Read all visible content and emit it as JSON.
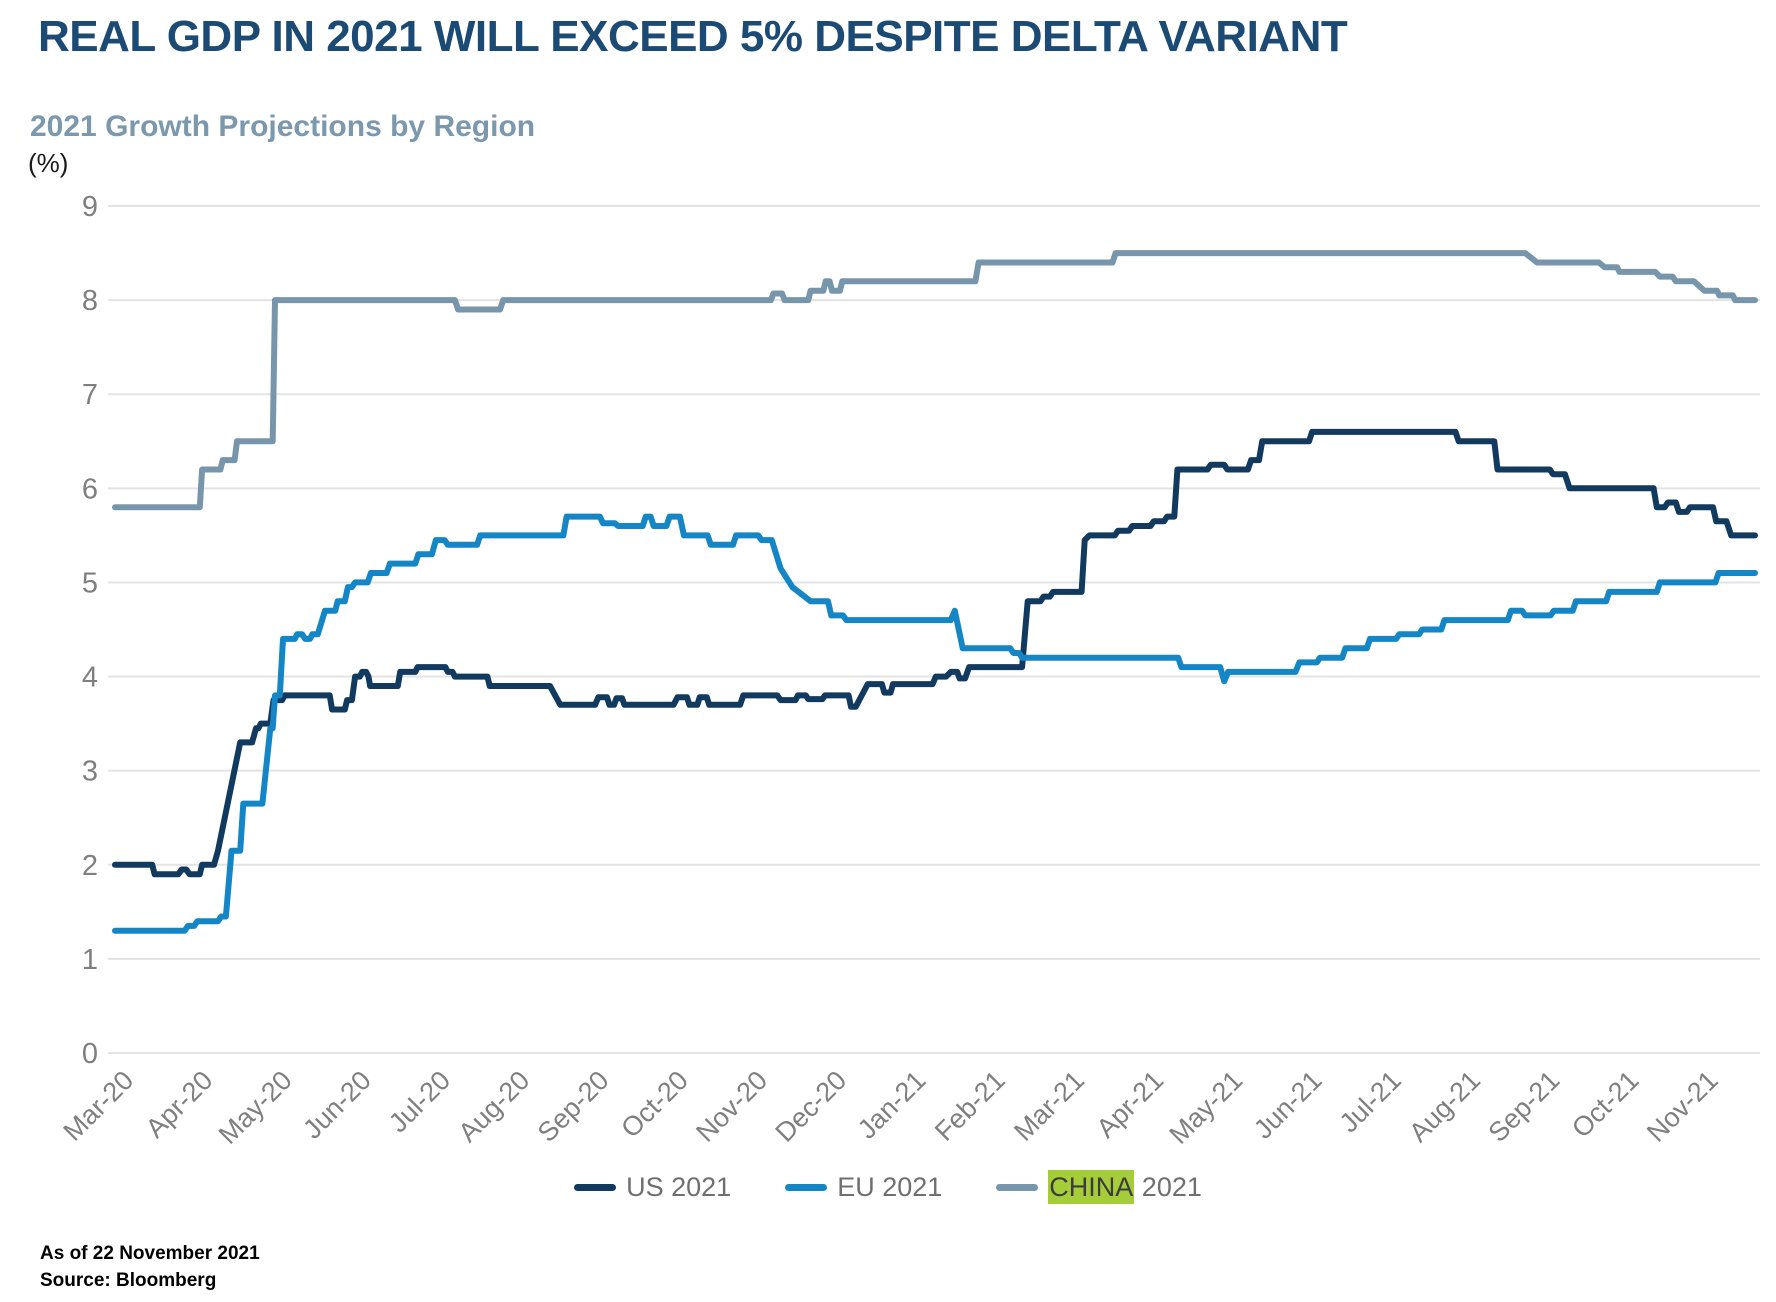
{
  "header": {
    "title": "REAL GDP IN 2021 WILL EXCEED 5% DESPITE DELTA VARIANT",
    "subtitle": "2021 Growth Projections by Region",
    "unit_label": "(%)"
  },
  "footer": {
    "as_of": "As of 22 November 2021",
    "source": "Source: Bloomberg"
  },
  "colors": {
    "title": "#1b4a74",
    "subtitle": "#7b98ad",
    "gridline": "#e3e3e3",
    "axis_text": "#7f7f7f",
    "legend_text": "#6f6f6f",
    "highlight": "#a5cd39",
    "us_line": "#123a5e",
    "eu_line": "#1486c6",
    "china_line": "#7795ab"
  },
  "legend": {
    "items": [
      {
        "label": "US 2021",
        "highlight": ""
      },
      {
        "label": "EU 2021",
        "highlight": ""
      },
      {
        "label": "CHINA 2021",
        "highlight": "CHINA"
      }
    ]
  },
  "chart_data": {
    "type": "line",
    "title": "2021 Growth Projections by Region",
    "xlabel": "",
    "ylabel": "(%)",
    "ylim": [
      0,
      9
    ],
    "yticks": [
      0,
      1,
      2,
      3,
      4,
      5,
      6,
      7,
      8,
      9
    ],
    "grid": "horizontal-only",
    "legend_position": "bottom",
    "x_tick_labels": [
      "Mar-20",
      "Apr-20",
      "May-20",
      "Jun-20",
      "Jul-20",
      "Aug-20",
      "Sep-20",
      "Oct-20",
      "Nov-20",
      "Dec-20",
      "Jan-21",
      "Feb-21",
      "Mar-21",
      "Apr-21",
      "May-21",
      "Jun-21",
      "Jul-21",
      "Aug-21",
      "Sep-21",
      "Oct-21",
      "Nov-21"
    ],
    "x_unit": "months since Mar-2020 tick",
    "x_range": [
      0,
      20.7
    ],
    "series": [
      {
        "name": "US 2021",
        "color_key": "us_line",
        "points": [
          [
            0,
            2.0
          ],
          [
            0.47,
            2.0
          ],
          [
            0.5,
            1.9
          ],
          [
            0.8,
            1.9
          ],
          [
            0.84,
            1.95
          ],
          [
            0.9,
            1.95
          ],
          [
            0.94,
            1.9
          ],
          [
            1.07,
            1.9
          ],
          [
            1.1,
            2.0
          ],
          [
            1.25,
            2.0
          ],
          [
            1.3,
            2.15
          ],
          [
            1.58,
            3.3
          ],
          [
            1.73,
            3.3
          ],
          [
            1.78,
            3.45
          ],
          [
            1.81,
            3.45
          ],
          [
            1.84,
            3.5
          ],
          [
            1.96,
            3.5
          ],
          [
            2.0,
            3.75
          ],
          [
            2.11,
            3.75
          ],
          [
            2.14,
            3.8
          ],
          [
            2.71,
            3.8
          ],
          [
            2.74,
            3.65
          ],
          [
            2.9,
            3.65
          ],
          [
            2.93,
            3.75
          ],
          [
            2.99,
            3.75
          ],
          [
            3.03,
            4.0
          ],
          [
            3.09,
            4.0
          ],
          [
            3.12,
            4.05
          ],
          [
            3.17,
            4.05
          ],
          [
            3.2,
            4.0
          ],
          [
            3.22,
            3.9
          ],
          [
            3.57,
            3.9
          ],
          [
            3.6,
            4.05
          ],
          [
            3.79,
            4.05
          ],
          [
            3.82,
            4.1
          ],
          [
            4.17,
            4.1
          ],
          [
            4.2,
            4.05
          ],
          [
            4.26,
            4.05
          ],
          [
            4.29,
            4.0
          ],
          [
            4.7,
            4.0
          ],
          [
            4.73,
            3.9
          ],
          [
            5.49,
            3.9
          ],
          [
            5.62,
            3.7
          ],
          [
            6.06,
            3.7
          ],
          [
            6.1,
            3.78
          ],
          [
            6.21,
            3.78
          ],
          [
            6.24,
            3.7
          ],
          [
            6.3,
            3.7
          ],
          [
            6.33,
            3.77
          ],
          [
            6.4,
            3.77
          ],
          [
            6.43,
            3.7
          ],
          [
            7.05,
            3.7
          ],
          [
            7.1,
            3.78
          ],
          [
            7.22,
            3.78
          ],
          [
            7.25,
            3.7
          ],
          [
            7.35,
            3.7
          ],
          [
            7.38,
            3.78
          ],
          [
            7.47,
            3.78
          ],
          [
            7.5,
            3.7
          ],
          [
            7.89,
            3.7
          ],
          [
            7.93,
            3.8
          ],
          [
            8.36,
            3.8
          ],
          [
            8.4,
            3.75
          ],
          [
            8.59,
            3.75
          ],
          [
            8.62,
            3.8
          ],
          [
            8.72,
            3.8
          ],
          [
            8.75,
            3.76
          ],
          [
            8.93,
            3.76
          ],
          [
            8.96,
            3.8
          ],
          [
            9.26,
            3.8
          ],
          [
            9.29,
            3.68
          ],
          [
            9.35,
            3.68
          ],
          [
            9.5,
            3.92
          ],
          [
            9.68,
            3.92
          ],
          [
            9.71,
            3.83
          ],
          [
            9.79,
            3.83
          ],
          [
            9.82,
            3.92
          ],
          [
            10.32,
            3.92
          ],
          [
            10.36,
            4.0
          ],
          [
            10.49,
            4.0
          ],
          [
            10.55,
            4.05
          ],
          [
            10.63,
            4.05
          ],
          [
            10.66,
            3.98
          ],
          [
            10.73,
            3.98
          ],
          [
            10.78,
            4.1
          ],
          [
            11.45,
            4.1
          ],
          [
            11.52,
            4.8
          ],
          [
            11.68,
            4.8
          ],
          [
            11.72,
            4.85
          ],
          [
            11.8,
            4.85
          ],
          [
            11.84,
            4.9
          ],
          [
            12.2,
            4.9
          ],
          [
            12.24,
            5.45
          ],
          [
            12.3,
            5.5
          ],
          [
            12.62,
            5.5
          ],
          [
            12.66,
            5.55
          ],
          [
            12.8,
            5.55
          ],
          [
            12.84,
            5.6
          ],
          [
            13.07,
            5.6
          ],
          [
            13.11,
            5.65
          ],
          [
            13.24,
            5.65
          ],
          [
            13.28,
            5.7
          ],
          [
            13.37,
            5.7
          ],
          [
            13.41,
            6.2
          ],
          [
            13.79,
            6.2
          ],
          [
            13.83,
            6.25
          ],
          [
            14.0,
            6.25
          ],
          [
            14.04,
            6.2
          ],
          [
            14.3,
            6.2
          ],
          [
            14.34,
            6.3
          ],
          [
            14.44,
            6.3
          ],
          [
            14.48,
            6.5
          ],
          [
            15.07,
            6.5
          ],
          [
            15.11,
            6.6
          ],
          [
            16.92,
            6.6
          ],
          [
            16.96,
            6.5
          ],
          [
            17.41,
            6.5
          ],
          [
            17.45,
            6.2
          ],
          [
            18.11,
            6.2
          ],
          [
            18.15,
            6.15
          ],
          [
            18.3,
            6.15
          ],
          [
            18.36,
            6.0
          ],
          [
            19.42,
            6.0
          ],
          [
            19.46,
            5.8
          ],
          [
            19.56,
            5.8
          ],
          [
            19.6,
            5.85
          ],
          [
            19.7,
            5.85
          ],
          [
            19.74,
            5.75
          ],
          [
            19.84,
            5.75
          ],
          [
            19.88,
            5.8
          ],
          [
            20.17,
            5.8
          ],
          [
            20.21,
            5.65
          ],
          [
            20.34,
            5.65
          ],
          [
            20.4,
            5.5
          ],
          [
            20.7,
            5.5
          ]
        ]
      },
      {
        "name": "EU 2021",
        "color_key": "eu_line",
        "points": [
          [
            0,
            1.3
          ],
          [
            0.88,
            1.3
          ],
          [
            0.92,
            1.35
          ],
          [
            1.0,
            1.35
          ],
          [
            1.04,
            1.4
          ],
          [
            1.3,
            1.4
          ],
          [
            1.34,
            1.45
          ],
          [
            1.4,
            1.45
          ],
          [
            1.47,
            2.15
          ],
          [
            1.58,
            2.15
          ],
          [
            1.62,
            2.65
          ],
          [
            1.86,
            2.65
          ],
          [
            1.96,
            3.45
          ],
          [
            1.99,
            3.45
          ],
          [
            2.02,
            3.8
          ],
          [
            2.08,
            3.8
          ],
          [
            2.12,
            4.4
          ],
          [
            2.27,
            4.4
          ],
          [
            2.3,
            4.45
          ],
          [
            2.36,
            4.45
          ],
          [
            2.4,
            4.4
          ],
          [
            2.46,
            4.4
          ],
          [
            2.49,
            4.45
          ],
          [
            2.56,
            4.45
          ],
          [
            2.65,
            4.7
          ],
          [
            2.78,
            4.7
          ],
          [
            2.81,
            4.8
          ],
          [
            2.9,
            4.8
          ],
          [
            2.94,
            4.95
          ],
          [
            2.99,
            4.95
          ],
          [
            3.03,
            5.0
          ],
          [
            3.19,
            5.0
          ],
          [
            3.23,
            5.1
          ],
          [
            3.43,
            5.1
          ],
          [
            3.47,
            5.2
          ],
          [
            3.79,
            5.2
          ],
          [
            3.83,
            5.3
          ],
          [
            4.0,
            5.3
          ],
          [
            4.05,
            5.45
          ],
          [
            4.16,
            5.45
          ],
          [
            4.2,
            5.4
          ],
          [
            4.57,
            5.4
          ],
          [
            4.61,
            5.5
          ],
          [
            5.66,
            5.5
          ],
          [
            5.7,
            5.7
          ],
          [
            6.12,
            5.7
          ],
          [
            6.16,
            5.63
          ],
          [
            6.31,
            5.63
          ],
          [
            6.35,
            5.6
          ],
          [
            6.66,
            5.6
          ],
          [
            6.7,
            5.7
          ],
          [
            6.76,
            5.7
          ],
          [
            6.8,
            5.6
          ],
          [
            6.96,
            5.6
          ],
          [
            7.0,
            5.7
          ],
          [
            7.13,
            5.7
          ],
          [
            7.18,
            5.5
          ],
          [
            7.48,
            5.5
          ],
          [
            7.52,
            5.4
          ],
          [
            7.8,
            5.4
          ],
          [
            7.84,
            5.5
          ],
          [
            8.12,
            5.5
          ],
          [
            8.16,
            5.45
          ],
          [
            8.29,
            5.45
          ],
          [
            8.4,
            5.15
          ],
          [
            8.55,
            4.95
          ],
          [
            8.78,
            4.8
          ],
          [
            9.0,
            4.8
          ],
          [
            9.04,
            4.65
          ],
          [
            9.19,
            4.65
          ],
          [
            9.23,
            4.6
          ],
          [
            10.55,
            4.6
          ],
          [
            10.6,
            4.7
          ],
          [
            10.7,
            4.3
          ],
          [
            11.3,
            4.3
          ],
          [
            11.34,
            4.25
          ],
          [
            11.41,
            4.25
          ],
          [
            11.45,
            4.2
          ],
          [
            13.42,
            4.2
          ],
          [
            13.46,
            4.1
          ],
          [
            13.95,
            4.1
          ],
          [
            14.0,
            3.95
          ],
          [
            14.05,
            4.05
          ],
          [
            14.9,
            4.05
          ],
          [
            14.95,
            4.15
          ],
          [
            15.17,
            4.15
          ],
          [
            15.21,
            4.2
          ],
          [
            15.49,
            4.2
          ],
          [
            15.53,
            4.3
          ],
          [
            15.8,
            4.3
          ],
          [
            15.84,
            4.4
          ],
          [
            16.17,
            4.4
          ],
          [
            16.21,
            4.45
          ],
          [
            16.46,
            4.45
          ],
          [
            16.5,
            4.5
          ],
          [
            16.74,
            4.5
          ],
          [
            16.78,
            4.6
          ],
          [
            17.58,
            4.6
          ],
          [
            17.62,
            4.7
          ],
          [
            17.76,
            4.7
          ],
          [
            17.8,
            4.65
          ],
          [
            18.12,
            4.65
          ],
          [
            18.16,
            4.7
          ],
          [
            18.4,
            4.7
          ],
          [
            18.44,
            4.8
          ],
          [
            18.82,
            4.8
          ],
          [
            18.86,
            4.9
          ],
          [
            19.46,
            4.9
          ],
          [
            19.5,
            5.0
          ],
          [
            20.2,
            5.0
          ],
          [
            20.24,
            5.1
          ],
          [
            20.7,
            5.1
          ]
        ]
      },
      {
        "name": "CHINA 2021",
        "color_key": "china_line",
        "points": [
          [
            0,
            5.8
          ],
          [
            1.07,
            5.8
          ],
          [
            1.1,
            6.2
          ],
          [
            1.33,
            6.2
          ],
          [
            1.36,
            6.3
          ],
          [
            1.51,
            6.3
          ],
          [
            1.54,
            6.5
          ],
          [
            1.99,
            6.5
          ],
          [
            2.02,
            8.0
          ],
          [
            4.29,
            8.0
          ],
          [
            4.33,
            7.9
          ],
          [
            4.86,
            7.9
          ],
          [
            4.9,
            8.0
          ],
          [
            8.28,
            8.0
          ],
          [
            8.31,
            8.07
          ],
          [
            8.42,
            8.07
          ],
          [
            8.45,
            8.0
          ],
          [
            8.75,
            8.0
          ],
          [
            8.78,
            8.1
          ],
          [
            8.94,
            8.1
          ],
          [
            8.97,
            8.2
          ],
          [
            9.02,
            8.2
          ],
          [
            9.05,
            8.1
          ],
          [
            9.15,
            8.1
          ],
          [
            9.18,
            8.2
          ],
          [
            10.86,
            8.2
          ],
          [
            10.9,
            8.4
          ],
          [
            12.59,
            8.4
          ],
          [
            12.63,
            8.5
          ],
          [
            17.8,
            8.5
          ],
          [
            17.95,
            8.4
          ],
          [
            18.73,
            8.4
          ],
          [
            18.8,
            8.35
          ],
          [
            18.96,
            8.35
          ],
          [
            18.99,
            8.3
          ],
          [
            19.44,
            8.3
          ],
          [
            19.5,
            8.25
          ],
          [
            19.66,
            8.25
          ],
          [
            19.7,
            8.2
          ],
          [
            19.93,
            8.2
          ],
          [
            20.06,
            8.1
          ],
          [
            20.22,
            8.1
          ],
          [
            20.25,
            8.05
          ],
          [
            20.42,
            8.05
          ],
          [
            20.45,
            8.0
          ],
          [
            20.7,
            8.0
          ]
        ]
      }
    ]
  }
}
